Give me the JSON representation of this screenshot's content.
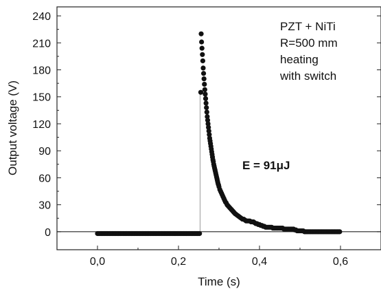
{
  "chart_data": {
    "type": "scatter",
    "xlabel": "Time (s)",
    "ylabel": "Output voltage (V)",
    "xlim": [
      -0.1,
      0.7
    ],
    "ylim": [
      -20,
      250
    ],
    "x_ticks": [
      0.0,
      0.2,
      0.4,
      0.6
    ],
    "x_tick_labels": [
      "0,0",
      "0,2",
      "0,4",
      "0,6"
    ],
    "y_ticks": [
      0,
      30,
      60,
      90,
      120,
      150,
      180,
      210,
      240
    ],
    "y_tick_labels": [
      "0",
      "30",
      "60",
      "90",
      "120",
      "150",
      "180",
      "210",
      "240"
    ],
    "legend_lines": [
      "PZT + NiTi",
      "R=500 mm",
      "heating",
      "with switch"
    ],
    "energy_label": "E = 91μJ",
    "grid": false,
    "reference_line_y": 0,
    "series": [
      {
        "marker_color": "#111111",
        "points": [
          [
            0.0,
            -2
          ],
          [
            0.003,
            -2
          ],
          [
            0.006,
            -2
          ],
          [
            0.009,
            -2
          ],
          [
            0.012,
            -2
          ],
          [
            0.015,
            -2
          ],
          [
            0.018,
            -2
          ],
          [
            0.021,
            -2
          ],
          [
            0.024,
            -2
          ],
          [
            0.027,
            -2
          ],
          [
            0.03,
            -2
          ],
          [
            0.033,
            -2
          ],
          [
            0.036,
            -2
          ],
          [
            0.039,
            -2
          ],
          [
            0.042,
            -2
          ],
          [
            0.045,
            -2
          ],
          [
            0.048,
            -2
          ],
          [
            0.051,
            -2
          ],
          [
            0.054,
            -2
          ],
          [
            0.057,
            -2
          ],
          [
            0.06,
            -2
          ],
          [
            0.063,
            -2
          ],
          [
            0.066,
            -2
          ],
          [
            0.069,
            -2
          ],
          [
            0.072,
            -2
          ],
          [
            0.075,
            -2
          ],
          [
            0.078,
            -2
          ],
          [
            0.081,
            -2
          ],
          [
            0.084,
            -2
          ],
          [
            0.087,
            -2
          ],
          [
            0.09,
            -2
          ],
          [
            0.093,
            -2
          ],
          [
            0.096,
            -2
          ],
          [
            0.099,
            -2
          ],
          [
            0.102,
            -2
          ],
          [
            0.105,
            -2
          ],
          [
            0.108,
            -2
          ],
          [
            0.111,
            -2
          ],
          [
            0.114,
            -2
          ],
          [
            0.117,
            -2
          ],
          [
            0.12,
            -2
          ],
          [
            0.123,
            -2
          ],
          [
            0.126,
            -2
          ],
          [
            0.129,
            -2
          ],
          [
            0.132,
            -2
          ],
          [
            0.135,
            -2
          ],
          [
            0.138,
            -2
          ],
          [
            0.141,
            -2
          ],
          [
            0.144,
            -2
          ],
          [
            0.147,
            -2
          ],
          [
            0.15,
            -2
          ],
          [
            0.153,
            -2
          ],
          [
            0.156,
            -2
          ],
          [
            0.159,
            -2
          ],
          [
            0.162,
            -2
          ],
          [
            0.165,
            -2
          ],
          [
            0.168,
            -2
          ],
          [
            0.171,
            -2
          ],
          [
            0.174,
            -2
          ],
          [
            0.177,
            -2
          ],
          [
            0.18,
            -2
          ],
          [
            0.183,
            -2
          ],
          [
            0.186,
            -2
          ],
          [
            0.189,
            -2
          ],
          [
            0.192,
            -2
          ],
          [
            0.195,
            -2
          ],
          [
            0.198,
            -2
          ],
          [
            0.201,
            -2
          ],
          [
            0.204,
            -2
          ],
          [
            0.207,
            -2
          ],
          [
            0.21,
            -2
          ],
          [
            0.213,
            -2
          ],
          [
            0.216,
            -2
          ],
          [
            0.219,
            -2
          ],
          [
            0.222,
            -2
          ],
          [
            0.225,
            -2
          ],
          [
            0.228,
            -2
          ],
          [
            0.231,
            -2
          ],
          [
            0.234,
            -2
          ],
          [
            0.237,
            -2
          ],
          [
            0.24,
            -2
          ],
          [
            0.243,
            -2
          ],
          [
            0.246,
            -2
          ],
          [
            0.249,
            -2
          ],
          [
            0.252,
            -2
          ],
          [
            0.255,
            155
          ],
          [
            0.256,
            220
          ],
          [
            0.257,
            211
          ],
          [
            0.258,
            204
          ],
          [
            0.259,
            197
          ],
          [
            0.26,
            190
          ],
          [
            0.261,
            182
          ],
          [
            0.262,
            176
          ],
          [
            0.263,
            170
          ],
          [
            0.264,
            164
          ],
          [
            0.265,
            158
          ],
          [
            0.266,
            153
          ],
          [
            0.267,
            148
          ],
          [
            0.268,
            143
          ],
          [
            0.269,
            138
          ],
          [
            0.27,
            133
          ],
          [
            0.271,
            128
          ],
          [
            0.272,
            124
          ],
          [
            0.273,
            120
          ],
          [
            0.274,
            116
          ],
          [
            0.275,
            112
          ],
          [
            0.276,
            108
          ],
          [
            0.277,
            104
          ],
          [
            0.278,
            101
          ],
          [
            0.279,
            98
          ],
          [
            0.28,
            95
          ],
          [
            0.281,
            92
          ],
          [
            0.282,
            89
          ],
          [
            0.283,
            86
          ],
          [
            0.284,
            83
          ],
          [
            0.285,
            80
          ],
          [
            0.286,
            78
          ],
          [
            0.287,
            75
          ],
          [
            0.288,
            73
          ],
          [
            0.289,
            71
          ],
          [
            0.29,
            69
          ],
          [
            0.291,
            67
          ],
          [
            0.292,
            65
          ],
          [
            0.293,
            63
          ],
          [
            0.294,
            61
          ],
          [
            0.295,
            59
          ],
          [
            0.296,
            57
          ],
          [
            0.297,
            55
          ],
          [
            0.298,
            53
          ],
          [
            0.299,
            52
          ],
          [
            0.3,
            50
          ],
          [
            0.302,
            47
          ],
          [
            0.304,
            45
          ],
          [
            0.306,
            43
          ],
          [
            0.308,
            41
          ],
          [
            0.31,
            39
          ],
          [
            0.312,
            37
          ],
          [
            0.314,
            35
          ],
          [
            0.316,
            33
          ],
          [
            0.318,
            32
          ],
          [
            0.32,
            30
          ],
          [
            0.322,
            29
          ],
          [
            0.324,
            28
          ],
          [
            0.326,
            27
          ],
          [
            0.328,
            26
          ],
          [
            0.33,
            25
          ],
          [
            0.332,
            24
          ],
          [
            0.334,
            23
          ],
          [
            0.336,
            22
          ],
          [
            0.338,
            21
          ],
          [
            0.34,
            20
          ],
          [
            0.343,
            19
          ],
          [
            0.346,
            18
          ],
          [
            0.349,
            17
          ],
          [
            0.352,
            16
          ],
          [
            0.355,
            15
          ],
          [
            0.358,
            14
          ],
          [
            0.361,
            14
          ],
          [
            0.364,
            13
          ],
          [
            0.367,
            12
          ],
          [
            0.37,
            12
          ],
          [
            0.373,
            12
          ],
          [
            0.376,
            12
          ],
          [
            0.379,
            11
          ],
          [
            0.382,
            11
          ],
          [
            0.385,
            11
          ],
          [
            0.388,
            10
          ],
          [
            0.391,
            9
          ],
          [
            0.394,
            9
          ],
          [
            0.397,
            8
          ],
          [
            0.4,
            8
          ],
          [
            0.403,
            7
          ],
          [
            0.406,
            7
          ],
          [
            0.409,
            6
          ],
          [
            0.412,
            6
          ],
          [
            0.415,
            5
          ],
          [
            0.418,
            5
          ],
          [
            0.421,
            5
          ],
          [
            0.424,
            5
          ],
          [
            0.427,
            5
          ],
          [
            0.43,
            5
          ],
          [
            0.433,
            4
          ],
          [
            0.436,
            4
          ],
          [
            0.439,
            4
          ],
          [
            0.442,
            4
          ],
          [
            0.445,
            4
          ],
          [
            0.448,
            4
          ],
          [
            0.451,
            4
          ],
          [
            0.454,
            4
          ],
          [
            0.457,
            4
          ],
          [
            0.46,
            3
          ],
          [
            0.463,
            3
          ],
          [
            0.466,
            3
          ],
          [
            0.469,
            3
          ],
          [
            0.472,
            3
          ],
          [
            0.475,
            3
          ],
          [
            0.478,
            3
          ],
          [
            0.481,
            3
          ],
          [
            0.484,
            3
          ],
          [
            0.487,
            2
          ],
          [
            0.49,
            2
          ],
          [
            0.493,
            1
          ],
          [
            0.496,
            1
          ],
          [
            0.499,
            1
          ],
          [
            0.502,
            1
          ],
          [
            0.505,
            1
          ],
          [
            0.508,
            1
          ],
          [
            0.511,
            0
          ],
          [
            0.514,
            0
          ],
          [
            0.517,
            0
          ],
          [
            0.52,
            0
          ],
          [
            0.523,
            0
          ],
          [
            0.526,
            0
          ],
          [
            0.529,
            0
          ],
          [
            0.532,
            0
          ],
          [
            0.535,
            0
          ],
          [
            0.538,
            0
          ],
          [
            0.541,
            0
          ],
          [
            0.544,
            0
          ],
          [
            0.547,
            0
          ],
          [
            0.55,
            0
          ],
          [
            0.553,
            0
          ],
          [
            0.556,
            0
          ],
          [
            0.559,
            0
          ],
          [
            0.562,
            0
          ],
          [
            0.565,
            0
          ],
          [
            0.568,
            0
          ],
          [
            0.571,
            0
          ],
          [
            0.574,
            0
          ],
          [
            0.577,
            0
          ],
          [
            0.58,
            0
          ],
          [
            0.583,
            0
          ],
          [
            0.586,
            0
          ],
          [
            0.589,
            0
          ],
          [
            0.592,
            0
          ],
          [
            0.595,
            0
          ],
          [
            0.598,
            0
          ]
        ]
      }
    ]
  }
}
